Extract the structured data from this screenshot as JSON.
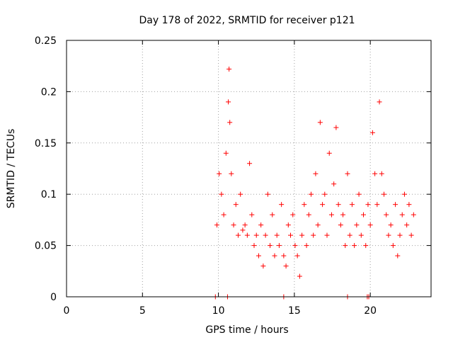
{
  "chart_data": {
    "type": "scatter",
    "title": "Day 178 of 2022, SRMTID for receiver p121",
    "xlabel": "GPS time / hours",
    "ylabel": "SRMTID / TECUs",
    "xlim": [
      0,
      24
    ],
    "ylim": [
      0,
      0.25
    ],
    "x_ticks": [
      0,
      5,
      10,
      15,
      20
    ],
    "x_tick_labels": [
      "0",
      "5",
      "10",
      "15",
      "20"
    ],
    "y_ticks": [
      0,
      0.05,
      0.1,
      0.15,
      0.2,
      0.25
    ],
    "y_tick_labels": [
      "0",
      "0.05",
      "0.1",
      "0.15",
      "0.2",
      "0.25"
    ],
    "grid": true,
    "marker": "+",
    "series": [
      {
        "name": "SRMTID",
        "color": "#ff0000",
        "x": [
          9.9,
          10.05,
          10.2,
          10.35,
          10.5,
          10.65,
          10.7,
          10.75,
          10.85,
          11.0,
          11.15,
          11.3,
          11.45,
          11.6,
          11.75,
          11.9,
          12.05,
          12.2,
          12.35,
          12.5,
          12.65,
          12.8,
          12.95,
          13.1,
          13.25,
          13.4,
          13.55,
          13.7,
          13.85,
          14.0,
          14.15,
          14.3,
          14.45,
          14.6,
          14.75,
          14.9,
          15.05,
          15.2,
          15.35,
          15.5,
          15.65,
          15.8,
          15.95,
          16.1,
          16.25,
          16.4,
          16.55,
          16.7,
          16.85,
          17.0,
          17.15,
          17.3,
          17.45,
          17.6,
          17.75,
          17.9,
          18.05,
          18.2,
          18.35,
          18.5,
          18.65,
          18.8,
          18.95,
          19.1,
          19.25,
          19.4,
          19.55,
          19.7,
          19.85,
          20.0,
          20.15,
          20.3,
          20.45,
          20.6,
          20.75,
          20.9,
          21.05,
          21.2,
          21.35,
          21.5,
          21.65,
          21.8,
          21.95,
          22.1,
          22.25,
          22.4,
          22.55,
          22.7,
          22.85
        ],
        "y": [
          0.07,
          0.12,
          0.1,
          0.08,
          0.14,
          0.19,
          0.222,
          0.17,
          0.12,
          0.07,
          0.09,
          0.06,
          0.1,
          0.065,
          0.07,
          0.06,
          0.13,
          0.08,
          0.05,
          0.06,
          0.04,
          0.07,
          0.03,
          0.06,
          0.1,
          0.05,
          0.08,
          0.04,
          0.06,
          0.05,
          0.09,
          0.04,
          0.03,
          0.07,
          0.06,
          0.08,
          0.05,
          0.04,
          0.02,
          0.06,
          0.09,
          0.05,
          0.08,
          0.1,
          0.06,
          0.12,
          0.07,
          0.17,
          0.09,
          0.1,
          0.06,
          0.14,
          0.08,
          0.11,
          0.165,
          0.09,
          0.07,
          0.08,
          0.05,
          0.12,
          0.06,
          0.09,
          0.05,
          0.07,
          0.1,
          0.06,
          0.08,
          0.05,
          0.09,
          0.07,
          0.16,
          0.12,
          0.09,
          0.19,
          0.12,
          0.1,
          0.08,
          0.06,
          0.07,
          0.05,
          0.09,
          0.04,
          0.06,
          0.08,
          0.1,
          0.07,
          0.09,
          0.06,
          0.08
        ]
      }
    ],
    "zero_markers_x": [
      9.8,
      10.6,
      14.3,
      18.5,
      19.8,
      19.9
    ]
  }
}
